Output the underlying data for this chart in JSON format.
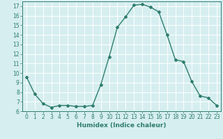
{
  "x": [
    0,
    1,
    2,
    3,
    4,
    5,
    6,
    7,
    8,
    9,
    10,
    11,
    12,
    13,
    14,
    15,
    16,
    17,
    18,
    19,
    20,
    21,
    22,
    23
  ],
  "y": [
    9.6,
    7.8,
    6.8,
    6.4,
    6.6,
    6.6,
    6.5,
    6.5,
    6.6,
    8.8,
    11.7,
    14.8,
    15.9,
    17.1,
    17.2,
    16.9,
    16.4,
    14.0,
    11.4,
    11.2,
    9.1,
    7.6,
    7.4,
    6.6
  ],
  "line_color": "#2e7d6e",
  "marker": "D",
  "marker_size": 2.0,
  "line_width": 1.0,
  "xlabel": "Humidex (Indice chaleur)",
  "xlabel_fontsize": 6.5,
  "xlabel_bold": true,
  "ylabel": "",
  "ylim": [
    6,
    17.5
  ],
  "xlim": [
    -0.5,
    23.5
  ],
  "yticks": [
    6,
    7,
    8,
    9,
    10,
    11,
    12,
    13,
    14,
    15,
    16,
    17
  ],
  "xticks": [
    0,
    1,
    2,
    3,
    4,
    5,
    6,
    7,
    8,
    9,
    10,
    11,
    12,
    13,
    14,
    15,
    16,
    17,
    18,
    19,
    20,
    21,
    22,
    23
  ],
  "tick_fontsize": 5.5,
  "background_color": "#d6eef0",
  "grid_color": "#ffffff",
  "title": ""
}
